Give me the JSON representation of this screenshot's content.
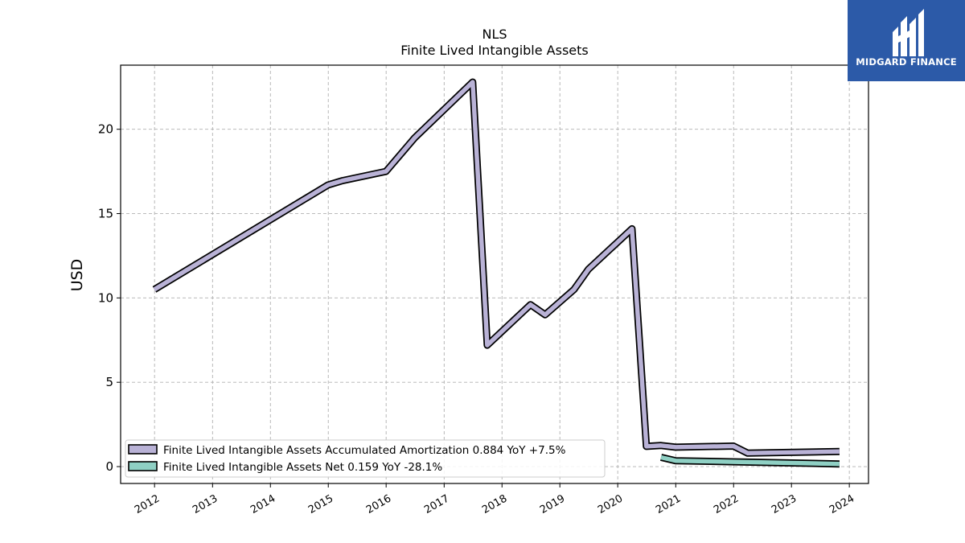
{
  "logo": {
    "text": "MIDGARD FINANCE",
    "color": "#2c5aa8"
  },
  "chart_data": {
    "type": "line",
    "title": "NLS",
    "subtitle": "Finite Lived Intangible Assets",
    "xlabel": "",
    "ylabel": "USD",
    "xlim": [
      "2011-06-01",
      "2024-05-01"
    ],
    "ylim": [
      -1,
      23.8
    ],
    "yticks": [
      0,
      5,
      10,
      15,
      20
    ],
    "xticks": [
      "2012",
      "2013",
      "2014",
      "2015",
      "2016",
      "2017",
      "2018",
      "2019",
      "2020",
      "2021",
      "2022",
      "2023",
      "2024"
    ],
    "grid": true,
    "legend_position": "lower-left",
    "series": [
      {
        "name": "Finite Lived Intangible Assets Accumulated Amortization  0.884 YoY +7.5%",
        "color": "#b9b2d6",
        "points": [
          [
            "2011-12-31",
            10.5
          ],
          [
            "2014-12-31",
            16.7
          ],
          [
            "2015-03-31",
            16.95
          ],
          [
            "2015-12-31",
            17.5
          ],
          [
            "2016-06-30",
            19.5
          ],
          [
            "2017-06-30",
            22.8
          ],
          [
            "2017-09-30",
            7.2
          ],
          [
            "2018-06-30",
            9.6
          ],
          [
            "2018-09-30",
            9.0
          ],
          [
            "2019-03-31",
            10.5
          ],
          [
            "2019-06-30",
            11.7
          ],
          [
            "2020-03-31",
            14.1
          ],
          [
            "2020-06-30",
            1.2
          ],
          [
            "2020-09-30",
            1.25
          ],
          [
            "2020-12-31",
            1.15
          ],
          [
            "2021-12-31",
            1.22
          ],
          [
            "2022-03-31",
            0.8
          ],
          [
            "2023-10-31",
            0.9
          ]
        ]
      },
      {
        "name": "Finite Lived Intangible Assets Net  0.159 YoY -28.1%",
        "color": "#8fd0c4",
        "points": [
          [
            "2020-09-30",
            0.55
          ],
          [
            "2020-12-31",
            0.35
          ],
          [
            "2023-10-31",
            0.16
          ]
        ]
      }
    ]
  }
}
